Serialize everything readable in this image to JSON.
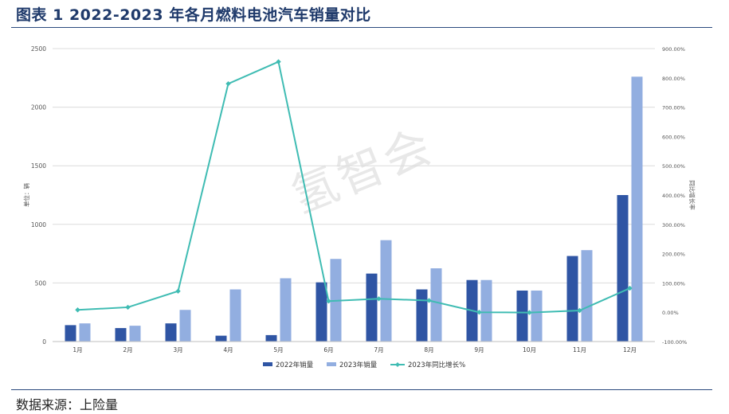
{
  "header": {
    "title": "图表 1 2022-2023 年各月燃料电池汽车销量对比"
  },
  "footer": {
    "source": "数据来源：上险量"
  },
  "watermark": "氢智会",
  "colors": {
    "s2022": "#2f55a4",
    "s2023": "#92aee0",
    "yoy": "#3fbcb3",
    "rule": "#2b4a7e",
    "title": "#1f3a6b"
  },
  "chart_data": {
    "type": "bar",
    "categories": [
      "1月",
      "2月",
      "3月",
      "4月",
      "5月",
      "6月",
      "7月",
      "8月",
      "9月",
      "10月",
      "11月",
      "12月"
    ],
    "series": [
      {
        "name": "2022年销量",
        "type": "bar",
        "axis": "left",
        "values": [
          140,
          115,
          155,
          50,
          55,
          505,
          580,
          445,
          525,
          435,
          730,
          1250
        ]
      },
      {
        "name": "2023年销量",
        "type": "bar",
        "axis": "left",
        "values": [
          155,
          135,
          270,
          445,
          540,
          705,
          865,
          625,
          525,
          435,
          780,
          2260
        ]
      },
      {
        "name": "2023年同比增长%",
        "type": "line",
        "axis": "right",
        "values": [
          8,
          17,
          72,
          780,
          855,
          38,
          46,
          40,
          0,
          -1,
          6,
          82
        ]
      }
    ],
    "ylabel": "单位：辆",
    "y2label": "同比增长率",
    "ylim": [
      0,
      2500
    ],
    "yticks": [
      "0",
      "500",
      "1000",
      "1500",
      "2000",
      "2500"
    ],
    "y2lim": [
      -100,
      900
    ],
    "y2ticks": [
      "-100.00%",
      "0.00%",
      "100.00%",
      "200.00%",
      "300.00%",
      "400.00%",
      "500.00%",
      "600.00%",
      "700.00%",
      "800.00%",
      "900.00%"
    ],
    "grid": true,
    "legend": "bottom-center"
  }
}
